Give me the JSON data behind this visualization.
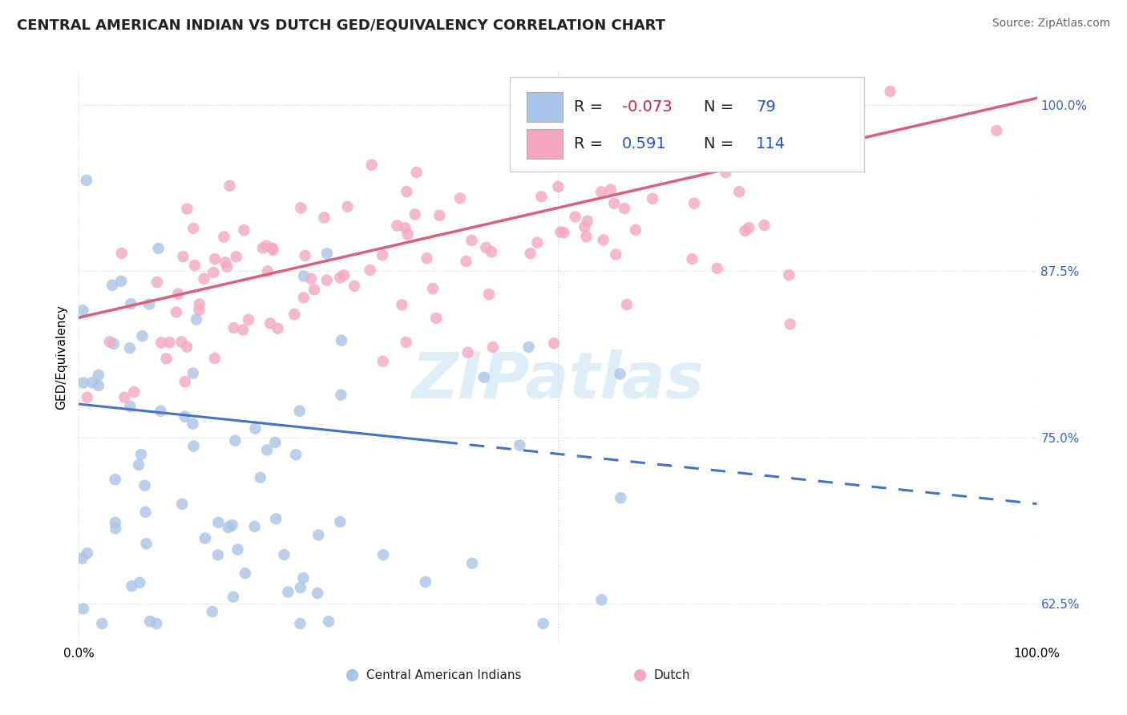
{
  "title": "CENTRAL AMERICAN INDIAN VS DUTCH GED/EQUIVALENCY CORRELATION CHART",
  "source_text": "Source: ZipAtlas.com",
  "ylabel": "GED/Equivalency",
  "legend_labels": [
    "Central American Indians",
    "Dutch"
  ],
  "blue_R": -0.073,
  "blue_N": 79,
  "pink_R": 0.591,
  "pink_N": 114,
  "blue_color": "#a8c4e8",
  "pink_color": "#f4a8c0",
  "blue_line_color": "#4472c4",
  "pink_line_color": "#d9607a",
  "watermark": "ZIPatlas",
  "xlim": [
    0.0,
    1.0
  ],
  "ylim": [
    0.595,
    1.025
  ],
  "yticks": [
    0.625,
    0.75,
    0.875,
    1.0
  ],
  "ytick_labels": [
    "62.5%",
    "75.0%",
    "87.5%",
    "100.0%"
  ],
  "title_fontsize": 13,
  "blue_line_start_y": 0.775,
  "blue_line_end_y": 0.7,
  "pink_line_start_y": 0.84,
  "pink_line_end_y": 1.005
}
